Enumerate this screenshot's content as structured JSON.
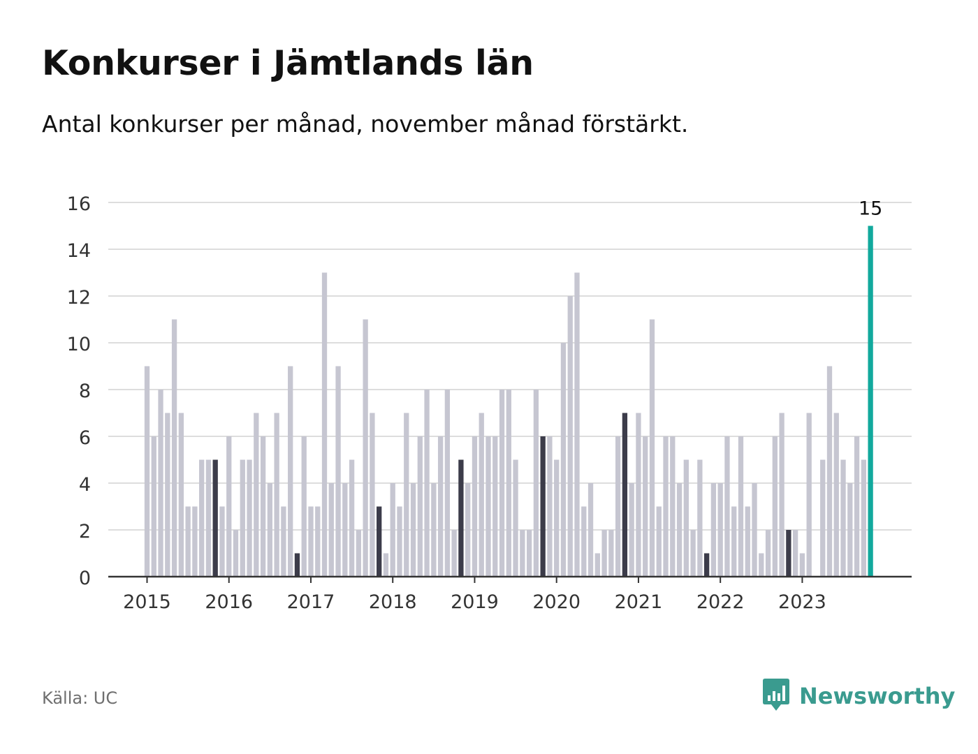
{
  "title": "Konkurser i Jämtlands län",
  "subtitle": "Antal konkurser per månad, november månad förstärkt.",
  "source": "Källa: UC",
  "brand": {
    "name": "Newsworthy",
    "icon": "bar-chart-bubble-icon",
    "color": "#3a9b8f"
  },
  "colors": {
    "regular": "#c6c6d1",
    "november": "#3c3c4a",
    "latest": "#12a99d",
    "grid": "#dddddd",
    "axis": "#333333"
  },
  "chart_data": {
    "type": "bar",
    "start": "2015-01",
    "highlight_month": 11,
    "values": [
      9,
      6,
      8,
      7,
      11,
      7,
      3,
      3,
      5,
      5,
      5,
      3,
      6,
      2,
      5,
      5,
      7,
      6,
      4,
      7,
      3,
      9,
      1,
      6,
      3,
      3,
      13,
      4,
      9,
      4,
      5,
      2,
      11,
      7,
      3,
      1,
      4,
      3,
      7,
      4,
      6,
      8,
      4,
      6,
      8,
      2,
      5,
      4,
      6,
      7,
      6,
      6,
      8,
      8,
      5,
      2,
      2,
      8,
      6,
      6,
      5,
      10,
      12,
      13,
      3,
      4,
      1,
      2,
      2,
      6,
      7,
      4,
      7,
      6,
      11,
      3,
      6,
      6,
      4,
      5,
      2,
      5,
      1,
      4,
      4,
      6,
      3,
      6,
      3,
      4,
      1,
      2,
      6,
      7,
      2,
      2,
      1,
      7,
      0,
      5,
      9,
      7,
      5,
      4,
      6,
      5,
      15
    ],
    "x_tick_labels": [
      "2015",
      "2016",
      "2017",
      "2018",
      "2019",
      "2020",
      "2021",
      "2022",
      "2023"
    ],
    "y_ticks": [
      0,
      2,
      4,
      6,
      8,
      10,
      12,
      14,
      16
    ],
    "ylim": [
      0,
      16
    ],
    "annotation": {
      "text": "15",
      "month": "2023-11"
    },
    "grid": true
  }
}
